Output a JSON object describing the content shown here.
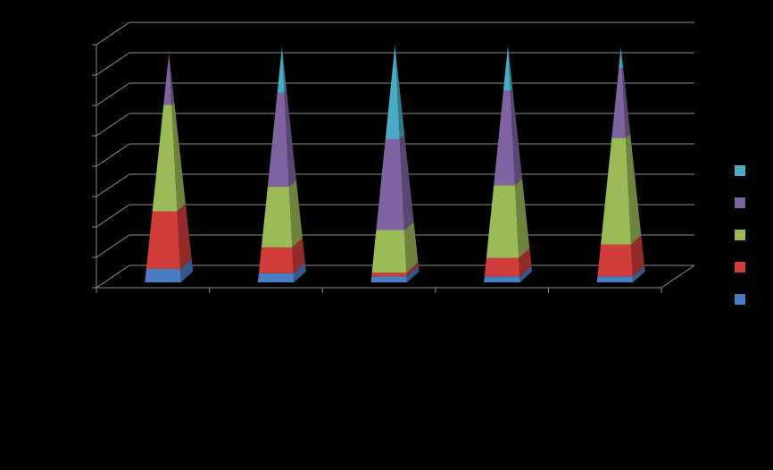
{
  "chart_data": {
    "type": "pyramid",
    "categories": [
      null,
      null,
      null,
      null,
      null
    ],
    "series": [
      {
        "color": "#4a7ec4",
        "values": [
          0.44,
          0.3,
          0.2,
          0.2,
          0.2
        ]
      },
      {
        "color": "#d13d3a",
        "values": [
          1.9,
          0.85,
          0.12,
          0.6,
          1.05
        ]
      },
      {
        "color": "#9bbb59",
        "values": [
          3.5,
          2.0,
          1.4,
          2.4,
          3.5
        ]
      },
      {
        "color": "#8064a2",
        "values": [
          1.6,
          3.1,
          3.0,
          3.1,
          2.3
        ]
      },
      {
        "color": "#4bacc6",
        "values": [
          0.1,
          1.5,
          3.1,
          1.5,
          0.7
        ]
      }
    ],
    "ylim": [
      0,
      8
    ],
    "yticks": [
      0,
      1,
      2,
      3,
      4,
      5,
      6,
      7,
      8
    ],
    "grid": true
  }
}
